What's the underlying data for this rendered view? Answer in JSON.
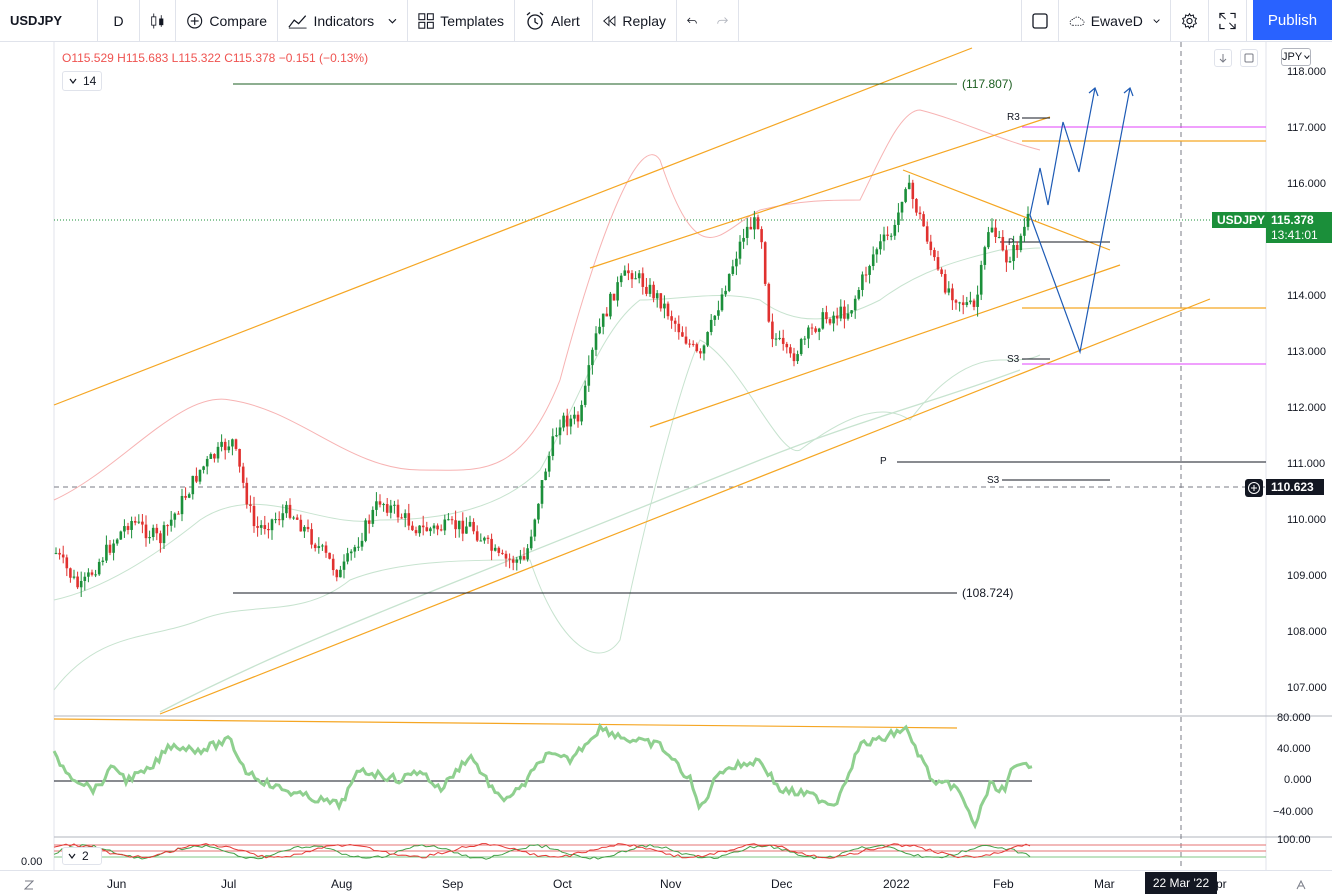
{
  "toolbar": {
    "symbol": "USDJPY",
    "interval": "D",
    "compare": "Compare",
    "indicators": "Indicators",
    "templates": "Templates",
    "alert": "Alert",
    "replay": "Replay",
    "layout_name": "EwaveD",
    "publish": "Publish"
  },
  "legend": {
    "open": "O115.529",
    "high": "H115.683",
    "low": "L115.322",
    "close": "C115.378",
    "change": "−0.151 (−0.13%)",
    "length": "14"
  },
  "currency": "JPY",
  "price_axis": [
    "118.000",
    "117.000",
    "116.000",
    "115.000",
    "114.000",
    "113.000",
    "112.000",
    "111.000",
    "110.000",
    "109.000",
    "108.000",
    "107.000"
  ],
  "osc_axis": [
    "80.000",
    "40.000",
    "0.000",
    "−40.000"
  ],
  "osc2_axis": "100.00",
  "osc2_length": "2",
  "left_zero": "0.00",
  "last_price": {
    "symbol": "USDJPY",
    "price": "115.378",
    "countdown": "13:41:01"
  },
  "crosshair_price": "110.623",
  "crosshair_date": "22 Mar '22",
  "levels": {
    "upper": "(117.807)",
    "lower": "(108.724)"
  },
  "pivots": {
    "r3": "R3",
    "s3_top": "S3",
    "p": "P",
    "s3_bottom": "S3",
    "pivot_small": "P"
  },
  "months": [
    "Jun",
    "Jul",
    "Aug",
    "Sep",
    "Oct",
    "Nov",
    "Dec",
    "2022",
    "Feb",
    "Mar",
    "pr"
  ],
  "colors": {
    "up": "#1b8f3a",
    "down": "#e0312f",
    "accent": "#2962ff",
    "channel": "#f5a623",
    "wave": "#1e5bb5",
    "pivot": "#e040fb"
  }
}
